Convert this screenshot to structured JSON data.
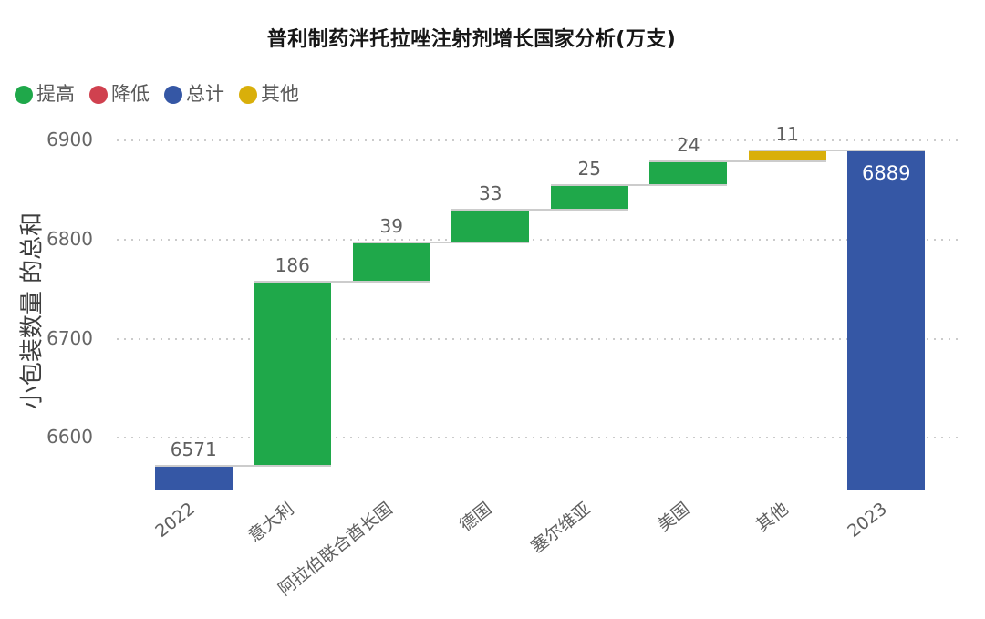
{
  "title": "普利制药泮托拉唑注射剂增长国家分析(万支)",
  "legend": {
    "items": [
      {
        "label": "提高",
        "type": "increase",
        "color": "#1fa84a"
      },
      {
        "label": "降低",
        "type": "decrease",
        "color": "#d0414f"
      },
      {
        "label": "总计",
        "type": "total",
        "color": "#3557a5"
      },
      {
        "label": "其他",
        "type": "other",
        "color": "#d9af0a"
      }
    ]
  },
  "chart_data": {
    "type": "waterfall",
    "title": "普利制药泮托拉唑注射剂增长国家分析(万支)",
    "ylabel": "小包装数量 的总和",
    "xlabel": "",
    "categories": [
      "2022",
      "意大利",
      "阿拉伯联合酋长国",
      "德国",
      "塞尔维亚",
      "美国",
      "其他",
      "2023"
    ],
    "values": [
      6571,
      186,
      39,
      33,
      25,
      24,
      11,
      6889
    ],
    "bar_types": [
      "total",
      "increase",
      "increase",
      "increase",
      "increase",
      "increase",
      "other",
      "total"
    ],
    "data_labels": [
      "6571",
      "186",
      "39",
      "33",
      "25",
      "24",
      "11",
      "6889"
    ],
    "cumulative": [
      6571,
      6757,
      6796,
      6829,
      6854,
      6878,
      6889,
      6889
    ],
    "yticks": [
      6600,
      6700,
      6800,
      6900
    ],
    "ylim": [
      6548,
      6913
    ],
    "grid": "dotted-horizontal",
    "legend_position": "top-left",
    "colors": {
      "increase": "#1fa84a",
      "decrease": "#d0414f",
      "total": "#3557a5",
      "other": "#d9af0a",
      "connector": "#cccccc"
    }
  }
}
